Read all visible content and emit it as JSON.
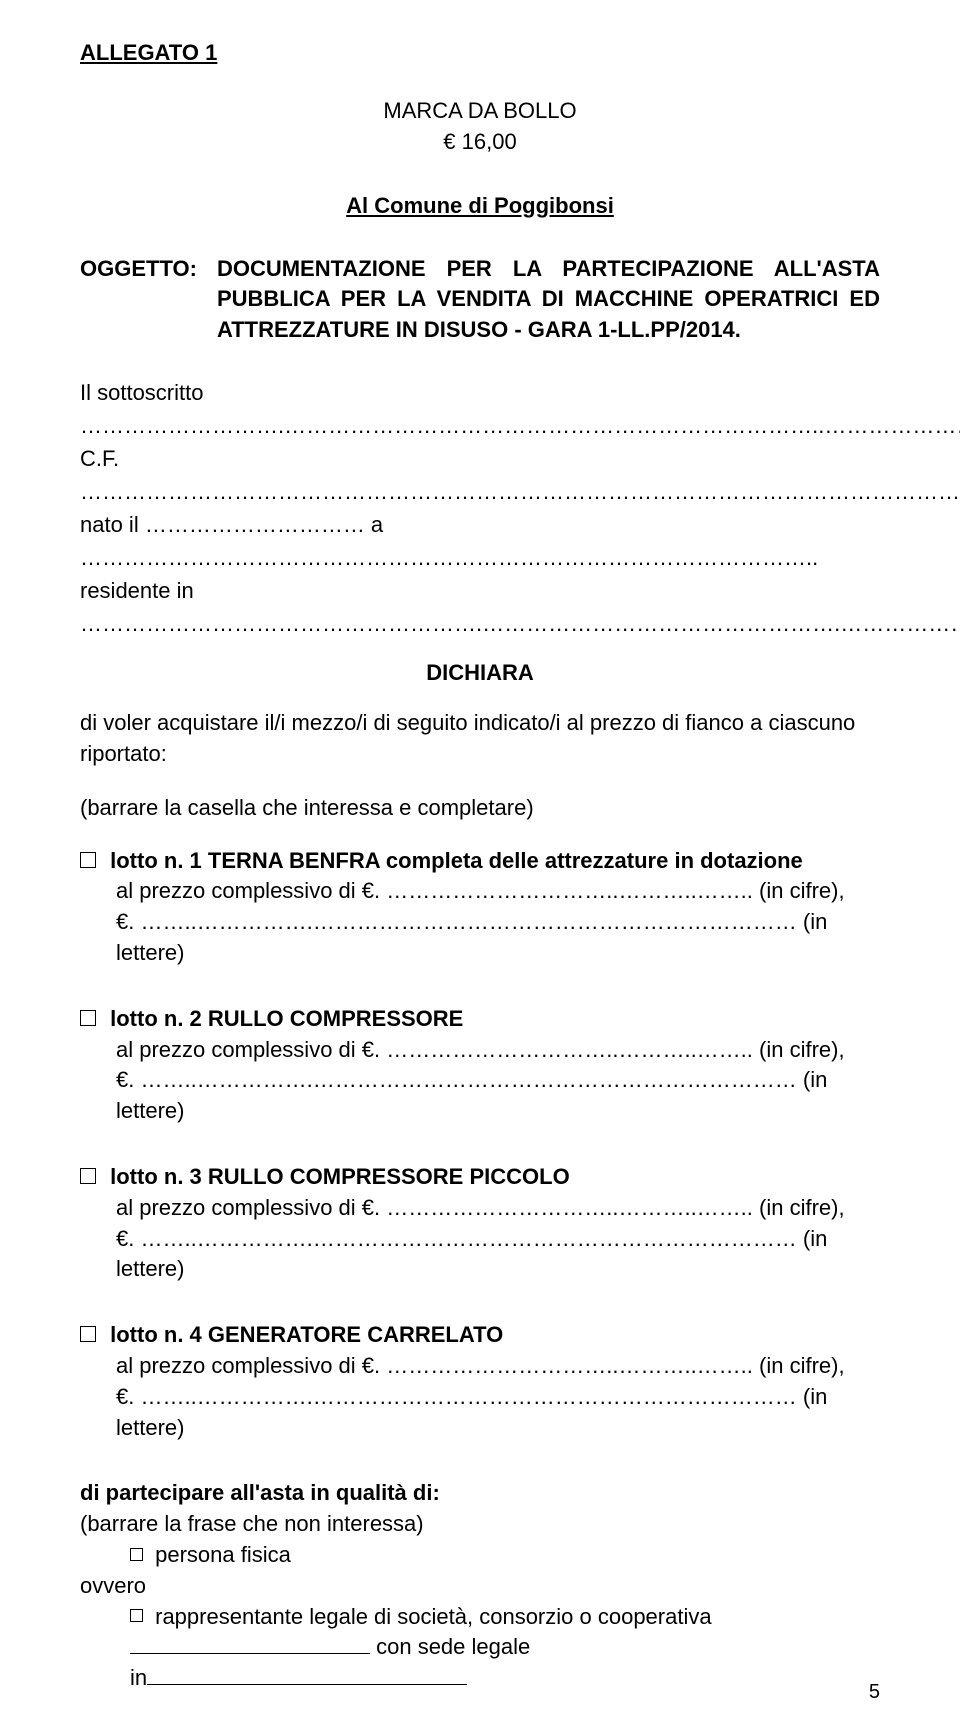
{
  "allegato": "ALLEGATO 1",
  "bollo": {
    "line1": "MARCA DA BOLLO",
    "line2": "€ 16,00"
  },
  "recipient": "Al Comune di Poggibonsi",
  "oggetto": {
    "label": "OGGETTO:",
    "text": "DOCUMENTAZIONE PER LA PARTECIPAZIONE ALL'ASTA PUBBLICA PER LA VENDITA DI MACCHINE OPERATRICI ED ATTREZZATURE IN DISUSO - GARA 1-LL.PP/2014."
  },
  "sottoscritto": {
    "l1": "Il sottoscritto ……………………….………………………………………………………………..……………………",
    "l2": "C.F. ………………………………………………………………………………………………………………………",
    "l3": "nato il ………………………… a ………………………………………………………………………………………..",
    "l4": "residente in ……………………………………………….………………………………………….……………………"
  },
  "dichiara": "DICHIARA",
  "acquistare": "di voler acquistare il/i mezzo/i di seguito indicato/i al prezzo di fianco a ciascuno riportato:",
  "barrare": "(barrare la casella che interessa e completare)",
  "lotti": [
    {
      "titolo": "lotto n. 1  TERNA BENFRA completa delle attrezzature in dotazione"
    },
    {
      "titolo": "lotto n. 2  RULLO COMPRESSORE"
    },
    {
      "titolo": "lotto n. 3  RULLO COMPRESSORE PICCOLO"
    },
    {
      "titolo": "lotto n. 4  GENERATORE CARRELATO"
    }
  ],
  "prezzo_line": "al prezzo complessivo di €. …………………………..………..…….. (in cifre),",
  "lettere_line": "€. ……..…………….………………………………………………………… (in lettere)",
  "partecipare": {
    "heading": "di partecipare all'asta in qualità di:",
    "note": "(barrare la frase che non interessa)",
    "opt1": "persona fisica",
    "ovvero": "ovvero",
    "opt2_pre": "rappresentante legale di società, consorzio o cooperativa",
    "opt2_post": " con sede legale",
    "in": "in"
  },
  "pagenum": "5",
  "colors": {
    "text": "#000000",
    "bg": "#ffffff"
  },
  "fontsize_body": 22
}
